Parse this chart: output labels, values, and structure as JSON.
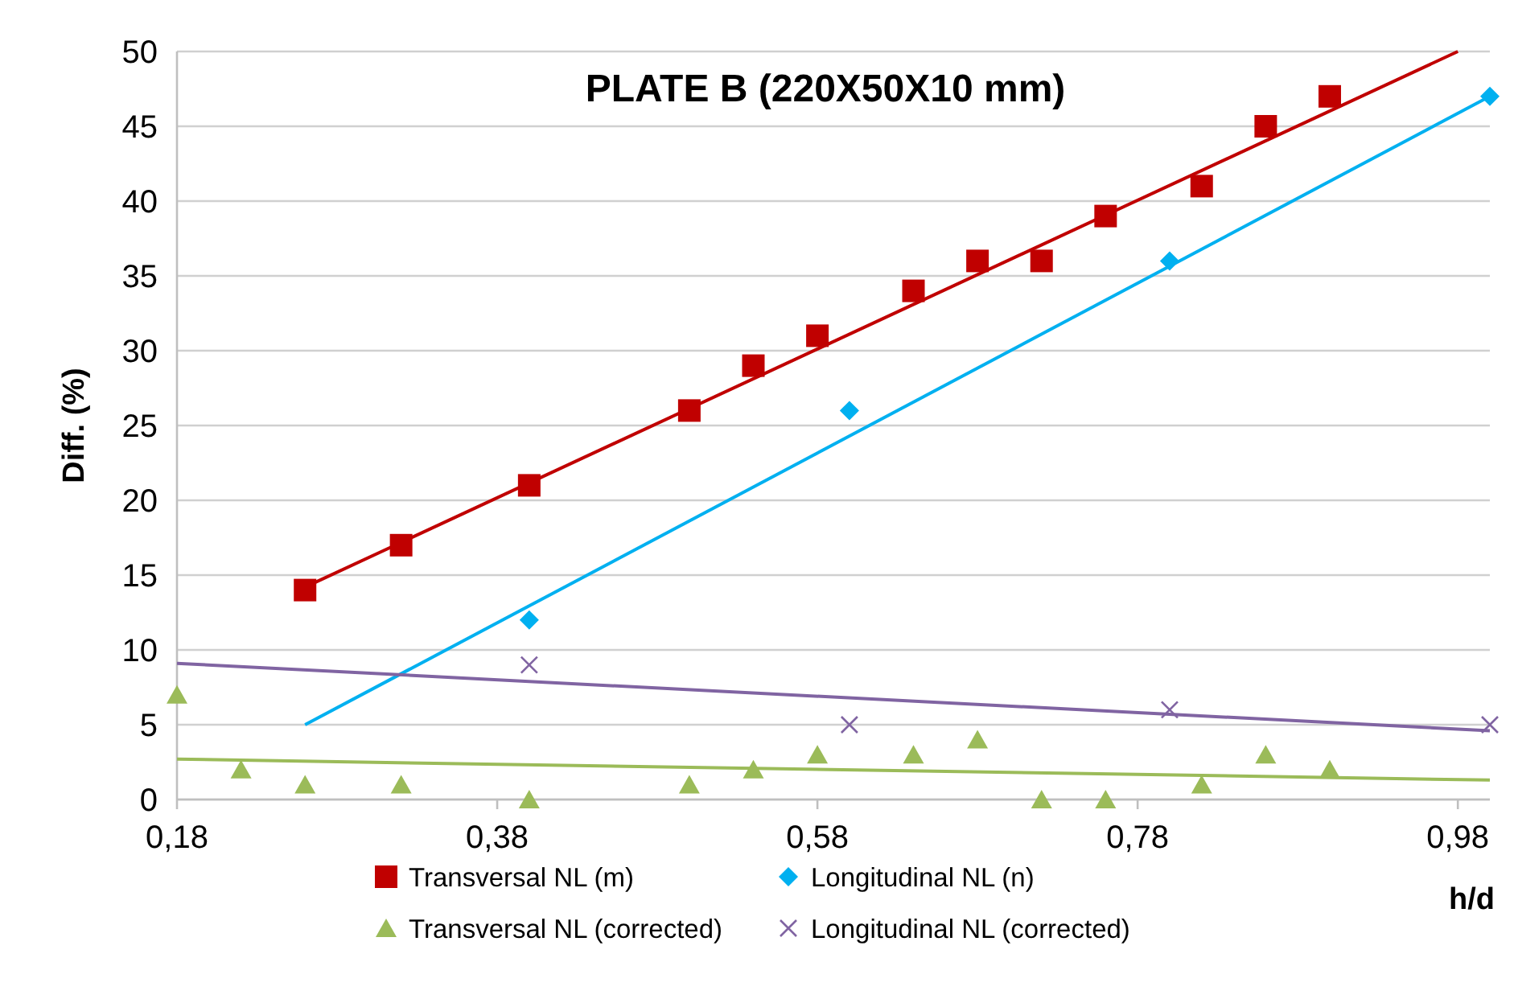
{
  "chart_data": {
    "type": "scatter",
    "title": "PLATE B (220X50X10 mm)",
    "xlabel": "h/d",
    "ylabel": "Diff. (%)",
    "xlim": [
      0.18,
      1.0
    ],
    "xticks": [
      {
        "value": 0.18,
        "label": "0,18"
      },
      {
        "value": 0.38,
        "label": "0,38"
      },
      {
        "value": 0.58,
        "label": "0,58"
      },
      {
        "value": 0.78,
        "label": "0,78"
      },
      {
        "value": 0.98,
        "label": "0,98"
      }
    ],
    "ylim": [
      0,
      50
    ],
    "yticks": [
      0,
      5,
      10,
      15,
      20,
      25,
      30,
      35,
      40,
      45,
      50
    ],
    "grid": "y",
    "legend": "bottom",
    "series": [
      {
        "name": "Transversal NL (m)",
        "color": "#c00000",
        "marker": "square",
        "x": [
          0.26,
          0.32,
          0.4,
          0.5,
          0.54,
          0.58,
          0.64,
          0.68,
          0.72,
          0.76,
          0.82,
          0.86,
          0.9
        ],
        "values": [
          14,
          17,
          21,
          26,
          29,
          31,
          34,
          36,
          36,
          39,
          41,
          45,
          47
        ]
      },
      {
        "name": "Longitudinal NL (n)",
        "color": "#00b0f0",
        "marker": "diamond",
        "x": [
          0.4,
          0.6,
          0.8,
          1.0
        ],
        "values": [
          12,
          26,
          36,
          47
        ]
      },
      {
        "name": "Transversal NL (corrected)",
        "color": "#9bbb59",
        "marker": "triangle",
        "x": [
          0.18,
          0.22,
          0.26,
          0.32,
          0.4,
          0.5,
          0.54,
          0.58,
          0.64,
          0.68,
          0.72,
          0.76,
          0.82,
          0.86,
          0.9
        ],
        "values": [
          7,
          2,
          1,
          1,
          0,
          1,
          2,
          3,
          3,
          4,
          0,
          0,
          1,
          3,
          2
        ]
      },
      {
        "name": "Longitudinal NL (corrected)",
        "color": "#8064a2",
        "marker": "cross",
        "x": [
          0.4,
          0.6,
          0.8,
          1.0
        ],
        "values": [
          9,
          5,
          6,
          5
        ]
      },
      {
        "type": "line",
        "color": "#c00000",
        "x": [
          0.26,
          0.98
        ],
        "values": [
          14.2,
          50
        ]
      },
      {
        "type": "line",
        "color": "#00b0f0",
        "x": [
          0.26,
          1.0
        ],
        "values": [
          5,
          47
        ]
      },
      {
        "type": "line",
        "color": "#8064a2",
        "x": [
          0.18,
          1.0
        ],
        "values": [
          9.1,
          4.6
        ]
      },
      {
        "type": "line",
        "color": "#9bbb59",
        "x": [
          0.18,
          1.0
        ],
        "values": [
          2.7,
          1.3
        ]
      }
    ]
  }
}
